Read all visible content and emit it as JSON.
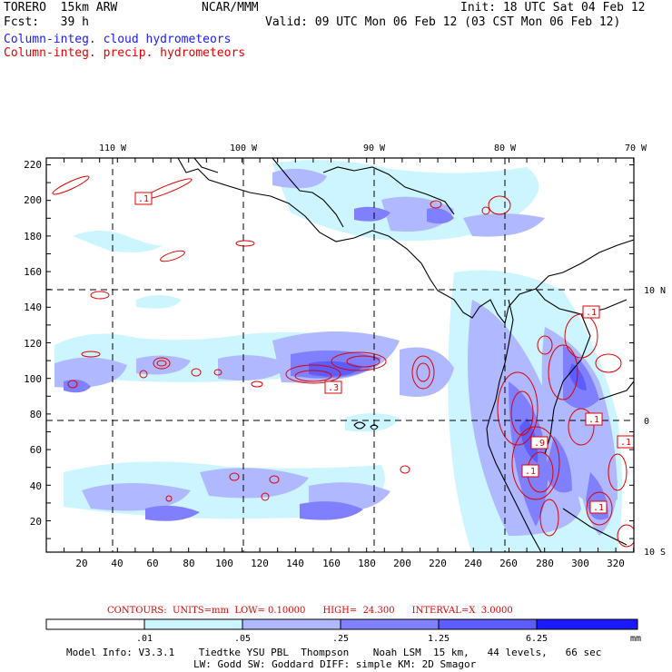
{
  "header": {
    "model": "TORERO  15km ARW",
    "org": "NCAR/MMM",
    "init": "Init: 18 UTC Sat 04 Feb 12",
    "fcst": "Fcst:   39 h",
    "valid": "Valid: 09 UTC Mon 06 Feb 12 (03 CST Mon 06 Feb 12)",
    "field1": "Column-integ. cloud hydrometeors",
    "field2": "Column-integ. precip. hydrometeors"
  },
  "axes": {
    "left_ticks": [
      "220",
      "200",
      "180",
      "160",
      "140",
      "120",
      "100",
      "80",
      "60",
      "40",
      "20"
    ],
    "bottom_ticks": [
      "20",
      "40",
      "60",
      "80",
      "100",
      "120",
      "140",
      "160",
      "180",
      "200",
      "220",
      "240",
      "260",
      "280",
      "300",
      "320"
    ],
    "top_lon": [
      "110 W",
      "100 W",
      "90 W",
      "80 W",
      "70 W"
    ],
    "right_lat": [
      "10 N",
      "0",
      "10 S"
    ]
  },
  "contour_labels": [
    ".1",
    ".1",
    ".3",
    ".1",
    ".1",
    ".1",
    ".1",
    ".9"
  ],
  "contours_line": "CONTOURS:  UNITS=mm  LOW= 0.10000      HIGH=  24.300      INTERVAL=X  3.0000",
  "colorbar": {
    "labels": [
      ".01",
      ".05",
      ".25",
      "1.25",
      "6.25"
    ],
    "unit": "mm",
    "colors": [
      "#ffffff",
      "#ccf5ff",
      "#b0b8ff",
      "#8080ff",
      "#5c5cff",
      "#1a1aff"
    ]
  },
  "footer": {
    "line1": "Model Info: V3.3.1    Tiedtke YSU PBL  Thompson    Noah LSM  15 km,   44 levels,   66 sec",
    "line2": "LW: Godd SW: Goddard DIFF: simple KM: 2D Smagor"
  }
}
